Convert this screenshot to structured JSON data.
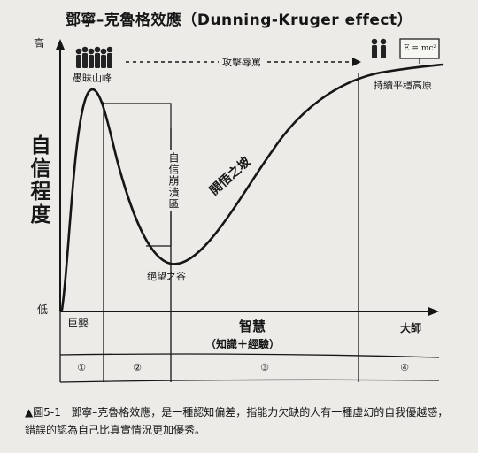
{
  "title": "鄧寧–克魯格效應（Dunning-Kruger effect）",
  "y_axis": {
    "label": "自信程度",
    "high": "高",
    "low": "低"
  },
  "x_axis": {
    "main": "智慧",
    "sub": "（知識＋經驗）",
    "left_end": "巨嬰",
    "right_end": "大師"
  },
  "annotations": {
    "peak": "愚昧山峰",
    "journey": "攻擊辱罵",
    "plateau": "持續平穩高原",
    "fall": "自信崩潰區",
    "valley": "絕望之谷",
    "slope": "開悟之坡",
    "formula": "E = mc²"
  },
  "stages": [
    "①",
    "②",
    "③",
    "④"
  ],
  "caption": {
    "marker": "▲",
    "figure": "圖5-1",
    "text": "鄧寧–克魯格效應，是一種認知偏差，指能力欠缺的人有一種虛幻的自我優越感，錯誤的認為自己比真實情況更加優秀。"
  },
  "colors": {
    "ink": "#161616",
    "paper": "#ecebe8"
  }
}
